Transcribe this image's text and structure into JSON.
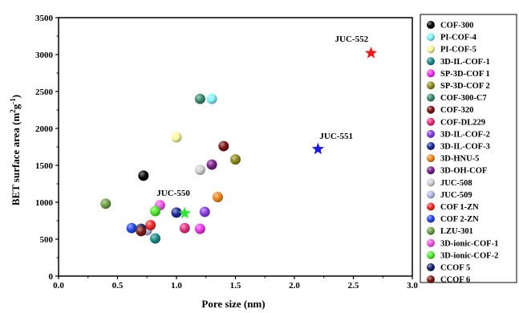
{
  "chart_data": {
    "type": "scatter",
    "xlabel": "Pore size (nm)",
    "ylabel_main": "BET surface area (m",
    "ylabel_sup1": "2",
    "ylabel_mid": "g",
    "ylabel_sup2": "-1",
    "ylabel_end": ")",
    "xlim": [
      0.0,
      3.0
    ],
    "ylim": [
      0,
      3500
    ],
    "xticks": [
      0.0,
      0.5,
      1.0,
      1.5,
      2.0,
      2.5,
      3.0
    ],
    "xtick_labels": [
      "0.0",
      "0.5",
      "1.0",
      "1.5",
      "2.0",
      "2.5",
      "3.0"
    ],
    "yticks": [
      0,
      500,
      1000,
      1500,
      2000,
      2500,
      3000,
      3500
    ],
    "ytick_labels": [
      "0",
      "500",
      "1000",
      "1500",
      "2000",
      "2500",
      "3000",
      "3500"
    ],
    "legend_position": "right-outside",
    "series": [
      {
        "name": "COF-300",
        "color": "#000000",
        "marker": "circle",
        "points": [
          {
            "x": 0.72,
            "y": 1360
          }
        ]
      },
      {
        "name": "PI-COF-4",
        "color": "#7ff3f9",
        "marker": "circle",
        "points": [
          {
            "x": 1.3,
            "y": 2400
          }
        ]
      },
      {
        "name": "PI-COF-5",
        "color": "#f8f69c",
        "marker": "circle",
        "points": [
          {
            "x": 1.0,
            "y": 1880
          }
        ]
      },
      {
        "name": "3D-IL-COF-1",
        "color": "#1a8a89",
        "marker": "circle",
        "points": [
          {
            "x": 0.82,
            "y": 510
          }
        ]
      },
      {
        "name": "SP-3D-COF 1",
        "color": "#ee33ee",
        "marker": "circle",
        "points": [
          {
            "x": 1.2,
            "y": 640
          }
        ]
      },
      {
        "name": "SP-3D-COF 2",
        "color": "#8d8a1e",
        "marker": "circle",
        "points": [
          {
            "x": 1.5,
            "y": 1580
          }
        ]
      },
      {
        "name": "COF-300-C7",
        "color": "#3a8a6e",
        "marker": "circle",
        "points": [
          {
            "x": 1.2,
            "y": 2400
          }
        ]
      },
      {
        "name": "COF-320",
        "color": "#7a1414",
        "marker": "circle",
        "points": [
          {
            "x": 1.4,
            "y": 1760
          }
        ]
      },
      {
        "name": "COF-DL229",
        "color": "#e8307e",
        "marker": "circle",
        "points": [
          {
            "x": 1.07,
            "y": 650
          }
        ]
      },
      {
        "name": "3D-IL-COF-2",
        "color": "#8a3ce0",
        "marker": "circle",
        "points": [
          {
            "x": 1.24,
            "y": 870
          }
        ]
      },
      {
        "name": "3D-IL-COF-3",
        "color": "#1c2a9a",
        "marker": "circle",
        "points": [
          {
            "x": 1.0,
            "y": 860
          }
        ]
      },
      {
        "name": "3D-HNU-5",
        "color": "#f0861c",
        "marker": "circle",
        "points": [
          {
            "x": 1.35,
            "y": 1070
          }
        ]
      },
      {
        "name": "3D-OH-COF",
        "color": "#7a1f8a",
        "marker": "circle",
        "points": [
          {
            "x": 1.3,
            "y": 1510
          }
        ]
      },
      {
        "name": "JUC-508",
        "color": "#d2d2d2",
        "marker": "circle",
        "points": [
          {
            "x": 1.2,
            "y": 1440
          }
        ]
      },
      {
        "name": "JUC-509",
        "color": "#b4b9e6",
        "marker": "circle",
        "points": [
          {
            "x": 0.75,
            "y": 620
          }
        ]
      },
      {
        "name": "COF 1-ZN",
        "color": "#f22a2a",
        "marker": "circle",
        "points": [
          {
            "x": 0.78,
            "y": 690
          }
        ]
      },
      {
        "name": "COF 2-ZN",
        "color": "#2547e8",
        "marker": "circle",
        "points": [
          {
            "x": 0.62,
            "y": 650
          }
        ]
      },
      {
        "name": "LZU-301",
        "color": "#6e9e42",
        "marker": "circle",
        "points": [
          {
            "x": 0.4,
            "y": 980
          }
        ]
      },
      {
        "name": "3D-ionic-COF-1",
        "color": "#f256e8",
        "marker": "circle",
        "points": [
          {
            "x": 0.86,
            "y": 960
          }
        ]
      },
      {
        "name": "3D-ionic-COF-2",
        "color": "#4ee82e",
        "marker": "circle",
        "points": [
          {
            "x": 0.82,
            "y": 880
          }
        ]
      },
      {
        "name": "CCOF 5",
        "color": "#14236e",
        "marker": "circle",
        "points": [
          {
            "x": 0.7,
            "y": 640
          }
        ]
      },
      {
        "name": "CCOF 6",
        "color": "#7a1a14",
        "marker": "circle",
        "points": [
          {
            "x": 0.7,
            "y": 610
          }
        ]
      }
    ],
    "stars": [
      {
        "label": "JUC-552",
        "color": "#f21a1a",
        "x": 2.65,
        "y": 3020
      },
      {
        "label": "JUC-551",
        "color": "#1a1ae8",
        "x": 2.2,
        "y": 1720
      },
      {
        "label": "JUC-550",
        "color": "#2ee82e",
        "x": 1.07,
        "y": 850
      }
    ]
  }
}
